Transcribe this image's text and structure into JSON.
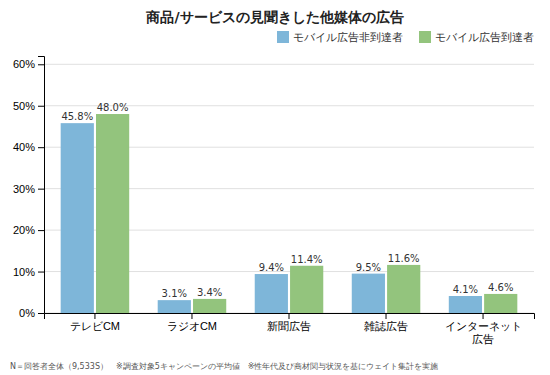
{
  "chart_data": {
    "type": "bar",
    "title": "商品/サービスの見聞きした他媒体の広告",
    "categories": [
      "テレビCM",
      "ラジオCM",
      "新聞広告",
      "雑誌広告",
      "インターネット\n広告"
    ],
    "series": [
      {
        "name": "モバイル広告非到達者",
        "color": "#7eb6d9",
        "values": [
          45.8,
          3.1,
          9.4,
          9.5,
          4.1
        ],
        "value_labels": [
          "45.8%",
          "3.1%",
          "9.4%",
          "9.5%",
          "4.1%"
        ]
      },
      {
        "name": "モバイル広告到達者",
        "color": "#93c47d",
        "values": [
          48.0,
          3.4,
          11.4,
          11.6,
          4.6
        ],
        "value_labels": [
          "48.0%",
          "3.4%",
          "11.4%",
          "11.6%",
          "4.6%"
        ]
      }
    ],
    "ylim": [
      0,
      62
    ],
    "yticks": [
      {
        "value": 0,
        "label": "0%"
      },
      {
        "value": 10,
        "label": "10%"
      },
      {
        "value": 20,
        "label": "20%"
      },
      {
        "value": 30,
        "label": "30%"
      },
      {
        "value": 40,
        "label": "40%"
      },
      {
        "value": 50,
        "label": "50%"
      },
      {
        "value": 60,
        "label": "60%"
      }
    ],
    "grid": true,
    "legend": "upper right",
    "data_labels": true,
    "annotations": [
      "N＝回答者全体（9,533S）　※調査対象5キャンペーンの平均値　※性年代及び商材関与状況を基にウェイト集計を実施"
    ]
  }
}
